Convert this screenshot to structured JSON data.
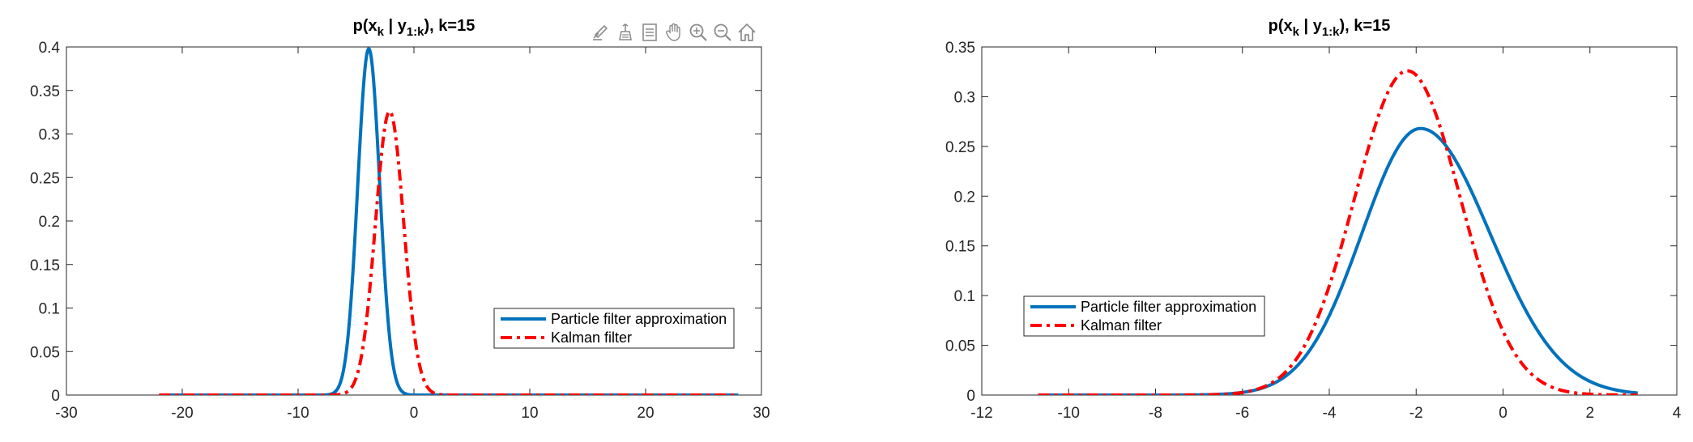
{
  "toolbar": {
    "icons": [
      "brush-edit-icon",
      "data-cursor-icon",
      "legend-icon",
      "pan-hand-icon",
      "zoom-in-icon",
      "zoom-out-icon",
      "home-icon"
    ],
    "color": "#8c8c8c"
  },
  "chart_data": [
    {
      "type": "line",
      "title": {
        "main": "p(x",
        "sub1": "k",
        "mid": " |  y",
        "sub2": "1:k",
        "end": "), k=15"
      },
      "xlim": [
        -30,
        30
      ],
      "ylim": [
        0,
        0.4
      ],
      "xticks": [
        -30,
        -20,
        -10,
        0,
        10,
        20,
        30
      ],
      "yticks": [
        0,
        0.05,
        0.1,
        0.15,
        0.2,
        0.25,
        0.3,
        0.35,
        0.4
      ],
      "xtick_labels": [
        "-30",
        "-20",
        "-10",
        "0",
        "10",
        "20",
        "30"
      ],
      "ytick_labels": [
        "0",
        "0.05",
        "0.1",
        "0.15",
        "0.2",
        "0.25",
        "0.3",
        "0.35",
        "0.4"
      ],
      "grid": false,
      "legend_position": "lower-right",
      "series": [
        {
          "name": "Particle filter approximation",
          "color": "#0072BD",
          "style": "solid",
          "x_range": [
            -22,
            28
          ],
          "peak_x": -3.9,
          "peak_y": 0.398,
          "sigma_left": 0.95,
          "sigma_right": 0.95
        },
        {
          "name": "Kalman filter",
          "color": "#FF0000",
          "style": "dashdot",
          "x_range": [
            -22,
            28
          ],
          "peak_x": -2.1,
          "peak_y": 0.326,
          "sigma_left": 1.22,
          "sigma_right": 1.22
        }
      ]
    },
    {
      "type": "line",
      "title": {
        "main": "p(x",
        "sub1": "k",
        "mid": " |  y",
        "sub2": "1:k",
        "end": "), k=15"
      },
      "xlim": [
        -12,
        4
      ],
      "ylim": [
        0,
        0.35
      ],
      "xticks": [
        -12,
        -10,
        -8,
        -6,
        -4,
        -2,
        0,
        2,
        4
      ],
      "yticks": [
        0,
        0.05,
        0.1,
        0.15,
        0.2,
        0.25,
        0.3,
        0.35
      ],
      "xtick_labels": [
        "-12",
        "-10",
        "-8",
        "-6",
        "-4",
        "-2",
        "0",
        "2",
        "4"
      ],
      "ytick_labels": [
        "0",
        "0.05",
        "0.1",
        "0.15",
        "0.2",
        "0.25",
        "0.3",
        "0.35"
      ],
      "grid": false,
      "legend_position": "lower-left",
      "series": [
        {
          "name": "Particle filter approximation",
          "color": "#0072BD",
          "style": "solid",
          "x_range": [
            -10.7,
            3.1
          ],
          "peak_x": -1.9,
          "peak_y": 0.268,
          "sigma_left": 1.35,
          "sigma_right": 1.6
        },
        {
          "name": "Kalman filter",
          "color": "#FF0000",
          "style": "dashdot",
          "x_range": [
            -10.7,
            3.1
          ],
          "peak_x": -2.2,
          "peak_y": 0.326,
          "sigma_left": 1.22,
          "sigma_right": 1.22
        }
      ]
    }
  ]
}
